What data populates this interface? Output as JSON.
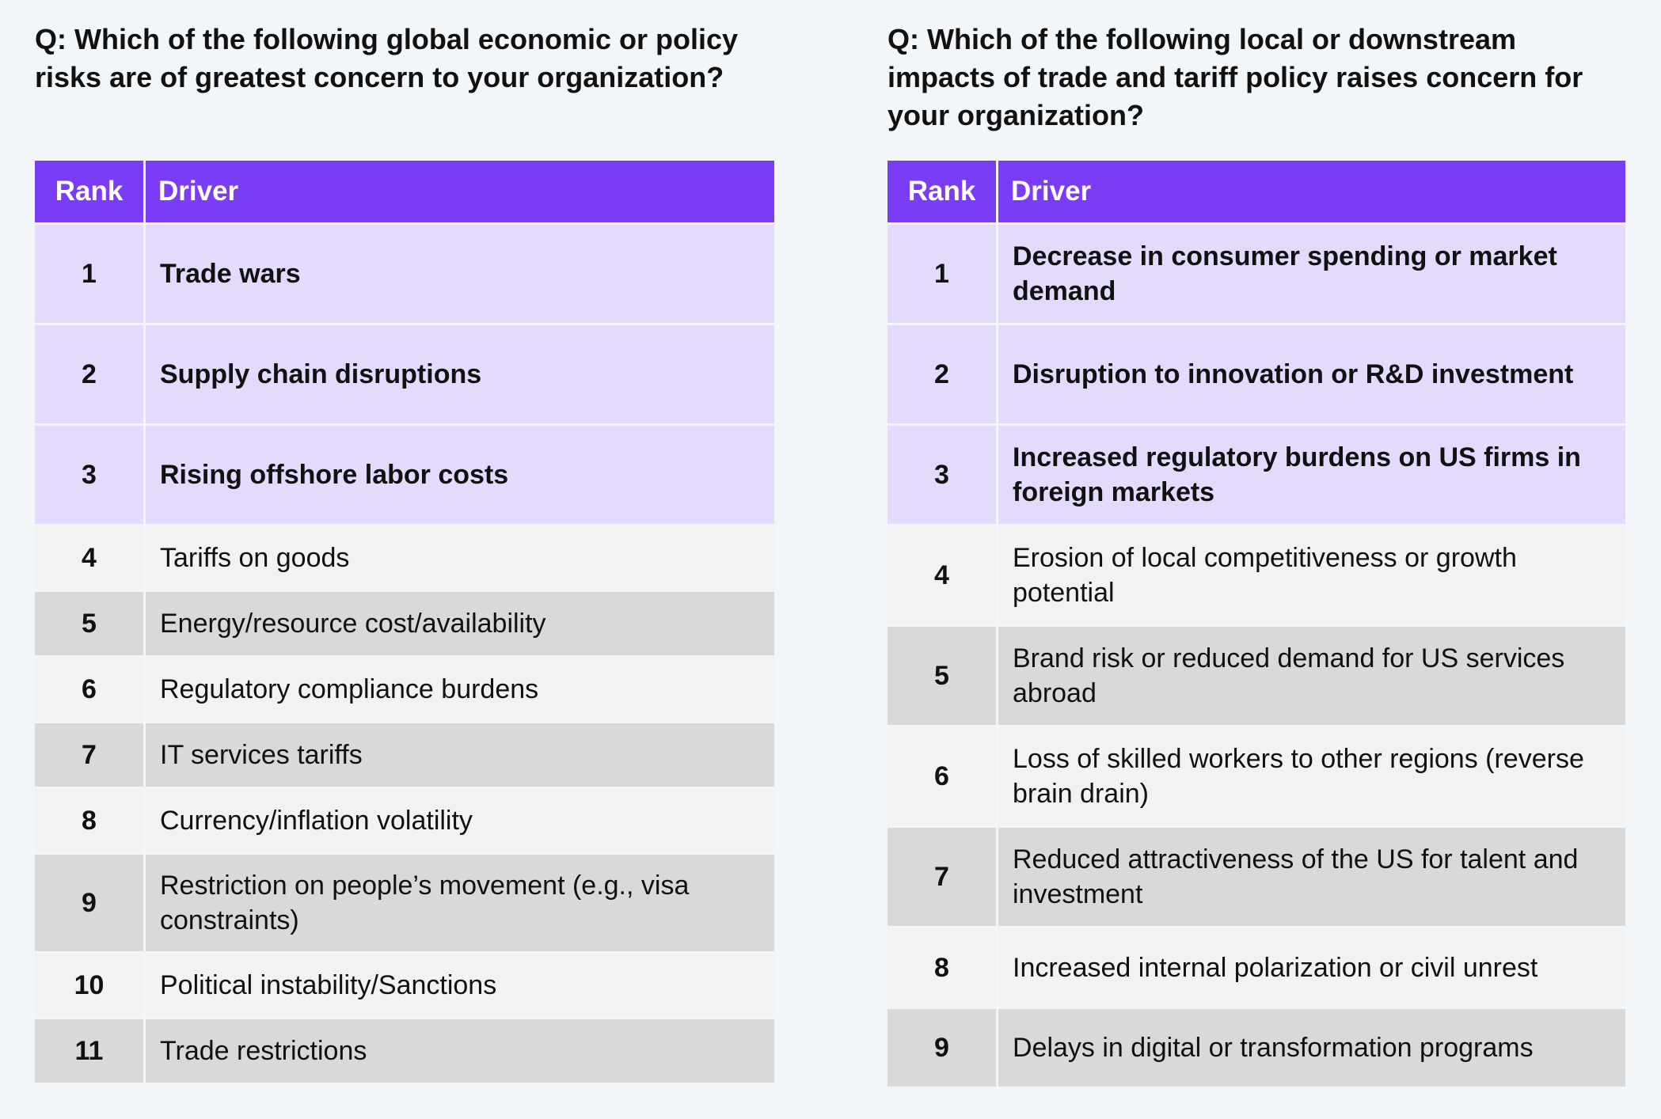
{
  "left": {
    "question": "Q: Which of the following global economic or policy risks are of greatest concern to your organization?",
    "header_rank": "Rank",
    "header_driver": "Driver",
    "rows": [
      {
        "rank": "1",
        "driver": "Trade wars"
      },
      {
        "rank": "2",
        "driver": "Supply chain disruptions"
      },
      {
        "rank": "3",
        "driver": "Rising offshore labor costs"
      },
      {
        "rank": "4",
        "driver": "Tariffs on goods"
      },
      {
        "rank": "5",
        "driver": "Energy/resource cost/availability"
      },
      {
        "rank": "6",
        "driver": "Regulatory compliance burdens"
      },
      {
        "rank": "7",
        "driver": "IT services tariffs"
      },
      {
        "rank": "8",
        "driver": "Currency/inflation volatility"
      },
      {
        "rank": "9",
        "driver": "Restriction on people’s movement (e.g., visa constraints)"
      },
      {
        "rank": "10",
        "driver": "Political instability/Sanctions"
      },
      {
        "rank": "11",
        "driver": "Trade restrictions"
      }
    ]
  },
  "right": {
    "question": "Q: Which of the following local or downstream impacts of trade and tariff policy raises concern for your organization?",
    "header_rank": "Rank",
    "header_driver": "Driver",
    "rows": [
      {
        "rank": "1",
        "driver": "Decrease in consumer spending or market demand"
      },
      {
        "rank": "2",
        "driver": "Disruption to innovation or R&D investment"
      },
      {
        "rank": "3",
        "driver": "Increased regulatory burdens on US firms in foreign markets"
      },
      {
        "rank": "4",
        "driver": "Erosion of local competitiveness or growth potential"
      },
      {
        "rank": "5",
        "driver": "Brand risk or reduced demand for US services abroad"
      },
      {
        "rank": "6",
        "driver": "Loss of skilled workers to other regions (reverse brain drain)"
      },
      {
        "rank": "7",
        "driver": "Reduced attractiveness of the US for talent and investment"
      },
      {
        "rank": "8",
        "driver": "Increased internal polarization or civil unrest"
      },
      {
        "rank": "9",
        "driver": "Delays in digital or transformation programs"
      }
    ]
  }
}
